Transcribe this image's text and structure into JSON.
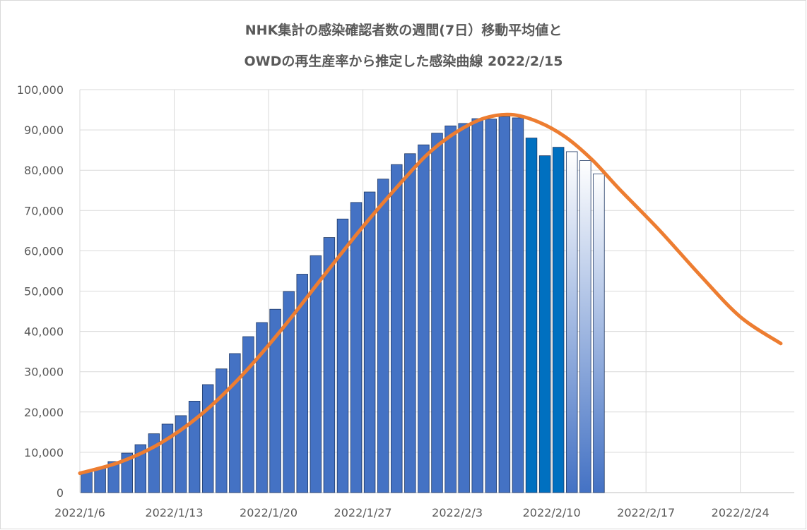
{
  "chart_data": {
    "type": "bar",
    "title_lines": [
      "NHK集計の感染確認者数の週間(7日）移動平均値と",
      "OWDの再生産率から推定した感染曲線  2022/2/15"
    ],
    "xlabel": "",
    "ylabel": "",
    "ylim": [
      0,
      100000
    ],
    "y_ticks": [
      "0",
      "10,000",
      "20,000",
      "30,000",
      "40,000",
      "50,000",
      "60,000",
      "70,000",
      "80,000",
      "90,000",
      "100,000"
    ],
    "x_ticks": [
      "2022/1/6",
      "2022/1/13",
      "2022/1/20",
      "2022/1/27",
      "2022/2/3",
      "2022/2/10",
      "2022/2/17",
      "2022/2/24"
    ],
    "x_start": "2022-01-06",
    "x_end": "2022-02-28",
    "grid": true,
    "bar_colors": {
      "main": "#4472C4",
      "recent": "#0070C0",
      "gradient_top": "#ffffff",
      "gradient_bottom": "#4472C4"
    },
    "curve_color": "#ED7D31",
    "series": [
      {
        "name": "",
        "kind": "bar",
        "x": [
          "2022-01-06",
          "2022-01-07",
          "2022-01-08",
          "2022-01-09",
          "2022-01-10",
          "2022-01-11",
          "2022-01-12",
          "2022-01-13",
          "2022-01-14",
          "2022-01-15",
          "2022-01-16",
          "2022-01-17",
          "2022-01-18",
          "2022-01-19",
          "2022-01-20",
          "2022-01-21",
          "2022-01-22",
          "2022-01-23",
          "2022-01-24",
          "2022-01-25",
          "2022-01-26",
          "2022-01-27",
          "2022-01-28",
          "2022-01-29",
          "2022-01-30",
          "2022-01-31",
          "2022-02-01",
          "2022-02-02",
          "2022-02-03",
          "2022-02-04",
          "2022-02-05",
          "2022-02-06",
          "2022-02-07",
          "2022-02-08",
          "2022-02-09",
          "2022-02-10",
          "2022-02-11",
          "2022-02-12",
          "2022-02-13"
        ],
        "values": [
          5200,
          6000,
          7700,
          9800,
          11900,
          14600,
          17000,
          19100,
          22700,
          26800,
          30700,
          34500,
          38700,
          42200,
          45500,
          49900,
          54200,
          58800,
          63300,
          67900,
          72000,
          74600,
          77800,
          81400,
          84100,
          86300,
          89200,
          91000,
          91600,
          92800,
          92700,
          93300,
          93000,
          88000,
          83600,
          85700,
          84600,
          82400,
          79100
        ],
        "color_group": [
          "main",
          "main",
          "main",
          "main",
          "main",
          "main",
          "main",
          "main",
          "main",
          "main",
          "main",
          "main",
          "main",
          "main",
          "main",
          "main",
          "main",
          "main",
          "main",
          "main",
          "main",
          "main",
          "main",
          "main",
          "main",
          "main",
          "main",
          "main",
          "main",
          "main",
          "main",
          "main",
          "main",
          "recent",
          "recent",
          "recent",
          "gradient",
          "gradient",
          "gradient"
        ]
      },
      {
        "name": "",
        "kind": "line",
        "x": [
          "2022-01-06",
          "2022-01-09",
          "2022-01-12",
          "2022-01-15",
          "2022-01-18",
          "2022-01-21",
          "2022-01-24",
          "2022-01-27",
          "2022-01-30",
          "2022-02-01",
          "2022-02-03",
          "2022-02-05",
          "2022-02-07",
          "2022-02-09",
          "2022-02-11",
          "2022-02-13",
          "2022-02-15",
          "2022-02-18",
          "2022-02-21",
          "2022-02-24",
          "2022-02-27"
        ],
        "values": [
          4800,
          7600,
          12300,
          19400,
          29000,
          40600,
          53400,
          66000,
          77600,
          84600,
          89600,
          92900,
          93800,
          92000,
          88300,
          82600,
          75400,
          65100,
          54000,
          43600,
          37000
        ]
      }
    ]
  }
}
